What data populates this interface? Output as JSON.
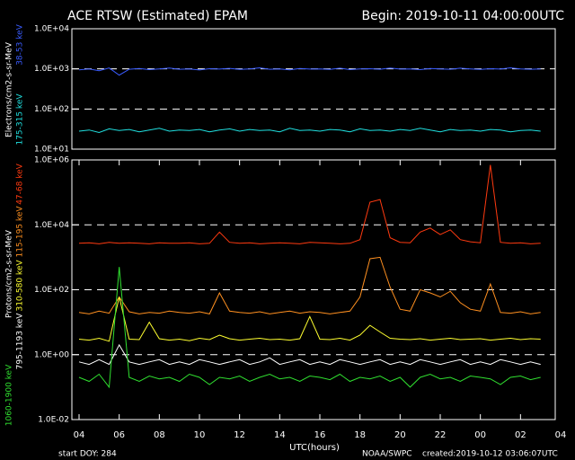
{
  "chart_data": [
    {
      "type": "line",
      "title": "ACE RTSW (Estimated) EPAM",
      "subtitle": "Begin: 2019-10-11 04:00:00UTC",
      "ylabel": "Electrons/cm2-s-sr-MeV",
      "log": true,
      "grid": "dashed",
      "ylim": [
        10,
        10000
      ],
      "yticks": [
        {
          "value": 10,
          "label": "1.0E+01"
        },
        {
          "value": 100,
          "label": "1.0E+02"
        },
        {
          "value": 1000,
          "label": "1.0E+03"
        },
        {
          "value": 10000,
          "label": "1.0E+04"
        }
      ],
      "x": [
        0,
        0.5,
        1,
        1.5,
        2,
        2.5,
        3,
        3.5,
        4,
        4.5,
        5,
        5.5,
        6,
        6.5,
        7,
        7.5,
        8,
        8.5,
        9,
        9.5,
        10,
        10.5,
        11,
        11.5,
        12,
        12.5,
        13,
        13.5,
        14,
        14.5,
        15,
        15.5,
        16,
        16.5,
        17,
        17.5,
        18,
        18.5,
        19,
        19.5,
        20,
        20.5,
        21,
        21.5,
        22,
        22.5,
        23
      ],
      "series": [
        {
          "name": "38-53 keV",
          "color": "#3a5cff",
          "values": [
            950,
            1000,
            900,
            1050,
            700,
            980,
            1020,
            960,
            1000,
            1050,
            980,
            1000,
            940,
            1010,
            990,
            1030,
            970,
            1000,
            1060,
            980,
            1000,
            950,
            1020,
            990,
            1000,
            970,
            1040,
            960,
            1000,
            1010,
            980,
            1050,
            990,
            1000,
            960,
            1020,
            1000,
            980,
            1040,
            1000,
            970,
            1010,
            990,
            1060,
            1000,
            980,
            1000
          ]
        },
        {
          "name": "175-315 keV",
          "color": "#20e0e0",
          "values": [
            28,
            30,
            26,
            32,
            29,
            31,
            27,
            30,
            33,
            28,
            30,
            29,
            31,
            27,
            30,
            32,
            28,
            31,
            29,
            30,
            27,
            33,
            29,
            30,
            28,
            31,
            30,
            27,
            32,
            29,
            30,
            28,
            31,
            29,
            33,
            30,
            27,
            31,
            29,
            30,
            28,
            31,
            30,
            27,
            29,
            30,
            28
          ]
        }
      ]
    },
    {
      "type": "line",
      "ylabel": "Protons/cm2-s-sr-MeV",
      "xlabel": "UTC(hours)",
      "log": true,
      "grid": "dashed",
      "ylim": [
        0.01,
        1000000
      ],
      "yticks": [
        {
          "value": 0.01,
          "label": "1.0E-02"
        },
        {
          "value": 1,
          "label": "1.0E+00"
        },
        {
          "value": 100,
          "label": "1.0E+02"
        },
        {
          "value": 10000,
          "label": "1.0E+04"
        },
        {
          "value": 1000000,
          "label": "1.0E+06"
        }
      ],
      "xlim": [
        0,
        24
      ],
      "xticks": [
        {
          "value": 0,
          "label": "04"
        },
        {
          "value": 2,
          "label": "06"
        },
        {
          "value": 4,
          "label": "08"
        },
        {
          "value": 6,
          "label": "10"
        },
        {
          "value": 8,
          "label": "12"
        },
        {
          "value": 10,
          "label": "14"
        },
        {
          "value": 12,
          "label": "16"
        },
        {
          "value": 14,
          "label": "18"
        },
        {
          "value": 16,
          "label": "20"
        },
        {
          "value": 18,
          "label": "22"
        },
        {
          "value": 20,
          "label": "00"
        },
        {
          "value": 22,
          "label": "02"
        },
        {
          "value": 24,
          "label": "04"
        }
      ],
      "annotations": [
        "start DOY: 284",
        "NOAA/SWPC",
        "created:2019-10-12 03:06:07UTC"
      ],
      "x": [
        0,
        0.5,
        1,
        1.5,
        2,
        2.5,
        3,
        3.5,
        4,
        4.5,
        5,
        5.5,
        6,
        6.5,
        7,
        7.5,
        8,
        8.5,
        9,
        9.5,
        10,
        10.5,
        11,
        11.5,
        12,
        12.5,
        13,
        13.5,
        14,
        14.5,
        15,
        15.5,
        16,
        16.5,
        17,
        17.5,
        18,
        18.5,
        19,
        19.5,
        20,
        20.5,
        21,
        21.5,
        22,
        22.5,
        23
      ],
      "series": [
        {
          "name": "47-68 keV",
          "color": "#ff3a10",
          "values": [
            2700,
            2800,
            2600,
            2900,
            2700,
            2800,
            2700,
            2600,
            2800,
            2700,
            2700,
            2800,
            2600,
            2700,
            6000,
            2900,
            2700,
            2800,
            2600,
            2700,
            2800,
            2700,
            2600,
            2900,
            2800,
            2700,
            2600,
            2700,
            3500,
            50000,
            60000,
            4000,
            2900,
            2800,
            6000,
            8000,
            5000,
            7000,
            3500,
            3000,
            2800,
            700000,
            2900,
            2700,
            2800,
            2600,
            2700
          ]
        },
        {
          "name": "115-195 keV",
          "color": "#ff9020",
          "values": [
            20,
            18,
            22,
            19,
            60,
            21,
            18,
            20,
            19,
            22,
            20,
            19,
            21,
            18,
            80,
            22,
            20,
            19,
            21,
            18,
            20,
            22,
            19,
            21,
            20,
            18,
            20,
            22,
            60,
            900,
            1000,
            120,
            25,
            22,
            100,
            80,
            60,
            90,
            40,
            25,
            22,
            150,
            20,
            19,
            21,
            18,
            20
          ]
        },
        {
          "name": "310-580 keV",
          "color": "#ffff30",
          "values": [
            3,
            2.8,
            3.2,
            2.6,
            60,
            3,
            2.9,
            10,
            3.1,
            2.8,
            3,
            2.7,
            3.2,
            2.9,
            4,
            3.1,
            2.8,
            3,
            3.2,
            2.9,
            3,
            2.8,
            3.1,
            15,
            3,
            2.9,
            3.2,
            2.8,
            4,
            8,
            5,
            3.2,
            3,
            2.9,
            3.1,
            2.8,
            3,
            3.2,
            2.9,
            3,
            3.1,
            2.8,
            3,
            3.2,
            2.9,
            3.1,
            3
          ]
        },
        {
          "name": "795-1193 keV",
          "color": "#ffffff",
          "values": [
            0.6,
            0.5,
            0.7,
            0.5,
            2,
            0.6,
            0.5,
            0.6,
            0.7,
            0.5,
            0.6,
            0.5,
            0.7,
            0.6,
            0.5,
            0.6,
            0.7,
            0.5,
            0.6,
            0.8,
            0.5,
            0.6,
            0.7,
            0.5,
            0.6,
            0.5,
            0.7,
            0.6,
            0.5,
            0.6,
            0.7,
            0.5,
            0.6,
            0.5,
            0.7,
            0.6,
            0.5,
            0.6,
            0.7,
            0.5,
            0.6,
            0.5,
            0.7,
            0.6,
            0.5,
            0.6,
            0.5
          ]
        },
        {
          "name": "1060-1900 keV",
          "color": "#30e030",
          "values": [
            0.2,
            0.15,
            0.25,
            0.1,
            500,
            0.2,
            0.15,
            0.22,
            0.18,
            0.2,
            0.15,
            0.25,
            0.2,
            0.12,
            0.2,
            0.18,
            0.22,
            0.15,
            0.2,
            0.25,
            0.18,
            0.2,
            0.15,
            0.22,
            0.2,
            0.17,
            0.25,
            0.15,
            0.2,
            0.18,
            0.22,
            0.15,
            0.2,
            0.1,
            0.2,
            0.25,
            0.18,
            0.2,
            0.15,
            0.22,
            0.2,
            0.18,
            0.12,
            0.2,
            0.22,
            0.17,
            0.2
          ]
        }
      ]
    }
  ]
}
